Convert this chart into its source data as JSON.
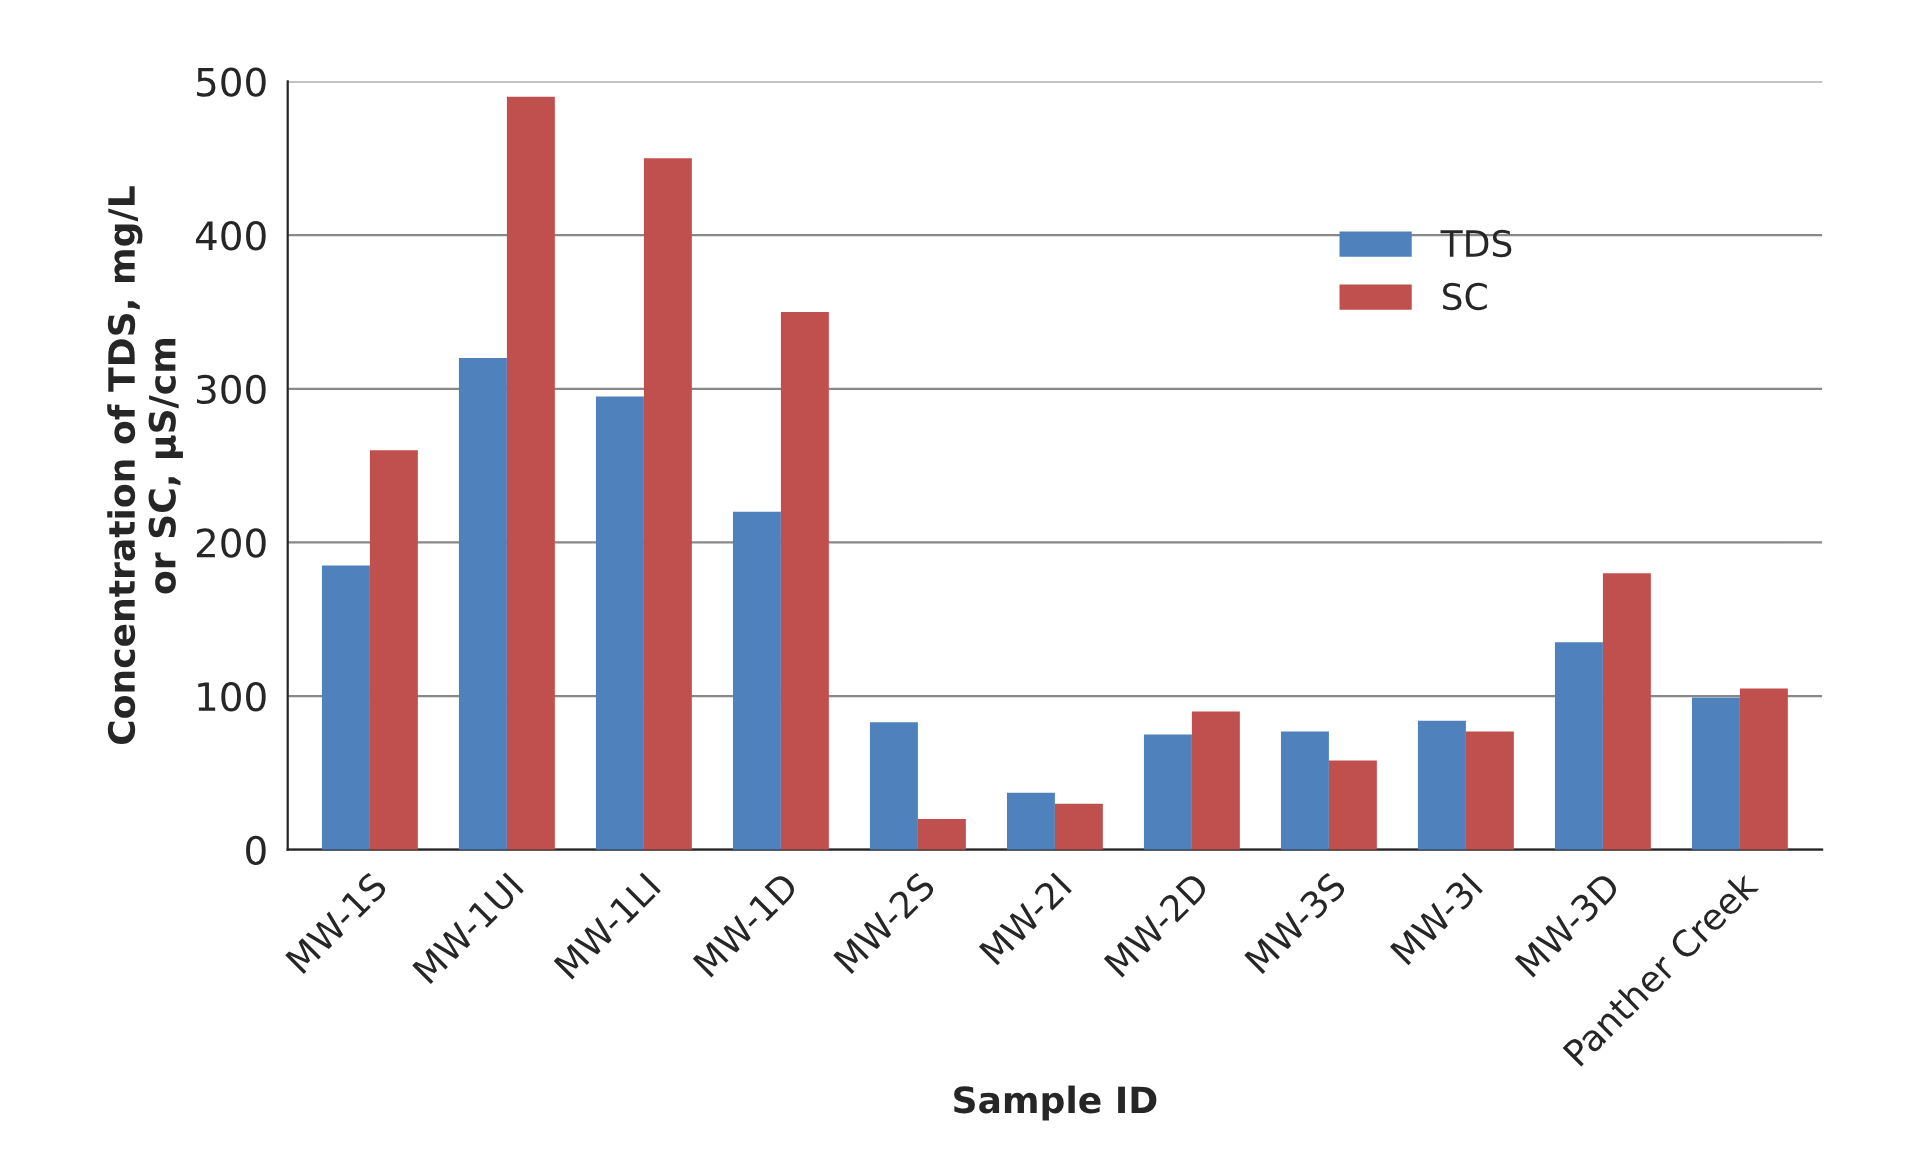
{
  "chart_data": {
    "type": "bar",
    "xlabel": "Sample ID",
    "ylabel": "Concentration of TDS, mg/L\nor SC, µS/cm",
    "categories": [
      "MW-1S",
      "MW-1UI",
      "MW-1LI",
      "MW-1D",
      "MW-2S",
      "MW-2I",
      "MW-2D",
      "MW-3S",
      "MW-3I",
      "MW-3D",
      "Panther Creek"
    ],
    "series": [
      {
        "name": "TDS",
        "color": "#4f81bd",
        "values": [
          185,
          320,
          295,
          220,
          83,
          37,
          75,
          77,
          84,
          135,
          99
        ]
      },
      {
        "name": "SC",
        "color": "#c0504d",
        "values": [
          260,
          490,
          450,
          350,
          20,
          30,
          90,
          58,
          77,
          180,
          105
        ]
      }
    ],
    "ylim": [
      0,
      500
    ],
    "yticks": [
      0,
      100,
      200,
      300,
      400,
      500
    ],
    "grid": "y",
    "legend": "top right"
  }
}
